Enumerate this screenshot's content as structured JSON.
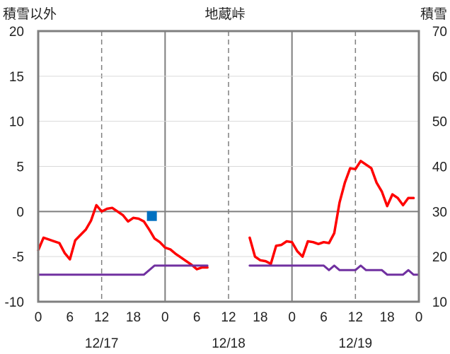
{
  "chart_data": {
    "type": "line",
    "title": "地蔵峠",
    "left_axis_label": "積雪以外",
    "right_axis_label": "積雪",
    "x_unit": "hours since 12/17 0:00",
    "xlim": [
      -2,
      70
    ],
    "ylim_left": [
      -10,
      20
    ],
    "ylim_right": [
      10,
      70
    ],
    "yticks_left": [
      -10,
      -5,
      0,
      5,
      10,
      15,
      20
    ],
    "yticks_right": [
      10,
      20,
      30,
      40,
      50,
      60,
      70
    ],
    "xtick_labels": [
      "0",
      "6",
      "12",
      "18",
      "0",
      "6",
      "12",
      "18",
      "0",
      "6",
      "12",
      "18",
      "0"
    ],
    "date_labels": [
      "12/17",
      "12/18",
      "12/19"
    ],
    "series": [
      {
        "name": "",
        "axis": "left",
        "color": "#ff0000",
        "segments": [
          {
            "x": [
              0,
              1,
              2,
              3,
              4,
              5,
              6,
              7,
              8,
              9,
              10,
              11,
              12,
              13,
              14,
              15,
              16,
              17,
              18,
              19,
              20,
              21,
              22,
              23,
              24,
              25,
              26,
              27,
              28,
              29,
              30,
              31,
              32
            ],
            "y": [
              -4.3,
              -2.9,
              -3.1,
              -3.3,
              -3.5,
              -4.6,
              -5.3,
              -3.2,
              -2.6,
              -2.0,
              -1.0,
              0.7,
              0.0,
              0.3,
              0.4,
              0.0,
              -0.4,
              -1.1,
              -0.7,
              -0.8,
              -1.1,
              -2.0,
              -3.0,
              -3.4,
              -4.0,
              -4.2,
              -4.7,
              -5.1,
              -5.5,
              -5.9,
              -6.4,
              -6.2,
              -6.2
            ]
          },
          {
            "x": [
              40,
              41,
              42,
              43,
              44,
              45,
              46,
              47,
              48,
              49,
              50,
              51,
              52,
              53,
              54,
              55,
              56,
              57,
              58,
              59,
              60,
              61,
              62,
              63,
              64,
              65,
              66,
              67,
              68,
              69,
              70,
              71,
              72
            ],
            "y": [
              -2.9,
              -5.0,
              -5.4,
              -5.5,
              -5.8,
              -3.8,
              -3.7,
              -3.3,
              -3.4,
              -4.4,
              -5.0,
              -3.3,
              -3.4,
              -3.6,
              -3.4,
              -3.5,
              -2.4,
              1.0,
              3.2,
              4.8,
              4.7,
              5.6,
              5.2,
              4.8,
              3.2,
              2.2,
              0.6,
              1.9,
              1.5,
              0.7,
              1.5,
              1.5,
              null
            ]
          }
        ]
      },
      {
        "name": "",
        "axis": "left",
        "color": "#7030a0",
        "segments": [
          {
            "x": [
              0,
              20,
              22,
              32
            ],
            "y": [
              -7.0,
              -7.0,
              -6.0,
              -6.0
            ]
          },
          {
            "x": [
              40,
              54,
              55,
              56,
              57,
              58,
              59,
              60,
              61,
              62,
              63,
              64,
              65,
              66,
              67,
              68,
              69,
              70,
              71,
              72
            ],
            "y": [
              -6.0,
              -6.0,
              -6.5,
              -6.0,
              -6.5,
              -6.5,
              -6.5,
              -6.5,
              -6.0,
              -6.5,
              -6.5,
              -6.5,
              -6.5,
              -7.0,
              -7.0,
              -7.0,
              -7.0,
              -6.5,
              -7.0,
              -7.0
            ]
          }
        ]
      },
      {
        "name": "",
        "axis": "left",
        "color": "#0070c0",
        "type": "marker",
        "points": [
          {
            "x": 21.5,
            "y": -0.5
          }
        ]
      }
    ]
  }
}
